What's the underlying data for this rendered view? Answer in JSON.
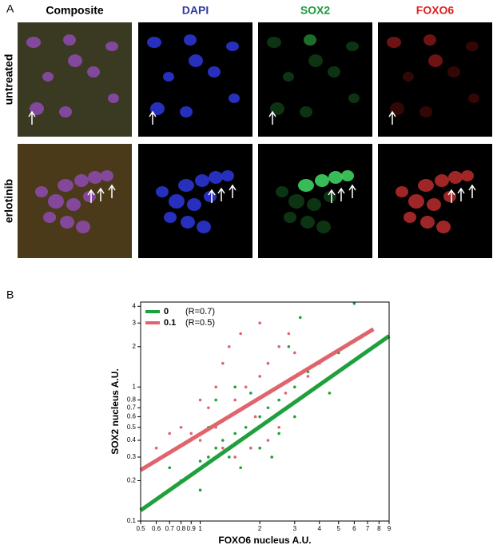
{
  "panel_a": {
    "label": "A",
    "columns": [
      "Composite",
      "DAPI",
      "SOX2",
      "FOXO6"
    ],
    "rows": [
      "untreated",
      "erlotinib"
    ]
  },
  "panel_b": {
    "label": "B"
  },
  "chart_data": {
    "type": "scatter",
    "xlabel": "FOXO6 nucleus A.U.",
    "ylabel": "SOX2 nucleus A.U.",
    "xscale": "log",
    "yscale": "log",
    "legend": "upper-left",
    "xlim": [
      0.5,
      9
    ],
    "ylim": [
      0.1,
      4.3
    ],
    "xticks": [
      0.5,
      0.6,
      0.7,
      0.8,
      0.9,
      1,
      2,
      3,
      4,
      5,
      6,
      7,
      8,
      9
    ],
    "yticks": [
      0.1,
      0.2,
      0.3,
      0.4,
      0.5,
      0.6,
      0.7,
      0.8,
      1,
      2,
      3,
      4
    ],
    "series": [
      {
        "name": "0",
        "r_label": "(R=0.7)",
        "color": "#1fa03c",
        "x": [
          1.0,
          1.1,
          1.2,
          1.3,
          1.5,
          1.7,
          2.0,
          2.2,
          2.5,
          3.0,
          3.5,
          4.0,
          5,
          6,
          0.9,
          0.8,
          1.1,
          1.4,
          1.6,
          2,
          2.5,
          3,
          1.2,
          1.5,
          2.8,
          3.2,
          6,
          0.7,
          1.0,
          1.8,
          4.5,
          2.3
        ],
        "values": [
          0.28,
          0.3,
          0.35,
          0.4,
          0.45,
          0.5,
          0.6,
          0.7,
          0.8,
          1.0,
          1.3,
          1.5,
          1.8,
          2.2,
          0.22,
          0.2,
          0.5,
          0.3,
          0.25,
          0.35,
          0.45,
          0.6,
          0.8,
          1.0,
          2.0,
          3.3,
          4.2,
          0.25,
          0.17,
          0.9,
          0.9,
          0.3
        ],
        "fit": {
          "x": [
            0.5,
            9
          ],
          "values": [
            0.12,
            2.4
          ]
        }
      },
      {
        "name": "0.1",
        "r_label": "(R=0.5)",
        "color": "#e0646c",
        "x": [
          1.0,
          1.2,
          1.4,
          1.5,
          1.7,
          2.0,
          2.2,
          2.5,
          1.3,
          1.6,
          2.0,
          2.8,
          3.0,
          1.1,
          0.9,
          0.8,
          0.6,
          1.5,
          1.8,
          2.2,
          2.5,
          3.5,
          4,
          1.2,
          1.4,
          1.9,
          0.7,
          1.0,
          2.7,
          1.3
        ],
        "values": [
          0.4,
          0.5,
          0.6,
          0.8,
          1.0,
          1.2,
          1.5,
          2.0,
          1.5,
          2.5,
          3.0,
          2.5,
          1.8,
          0.7,
          0.45,
          0.5,
          0.35,
          0.3,
          0.35,
          0.4,
          0.5,
          1.2,
          1.5,
          1.0,
          2.0,
          0.6,
          0.45,
          0.8,
          0.9,
          0.35
        ],
        "fit": {
          "x": [
            0.5,
            7.5
          ],
          "values": [
            0.24,
            2.7
          ]
        }
      }
    ]
  }
}
